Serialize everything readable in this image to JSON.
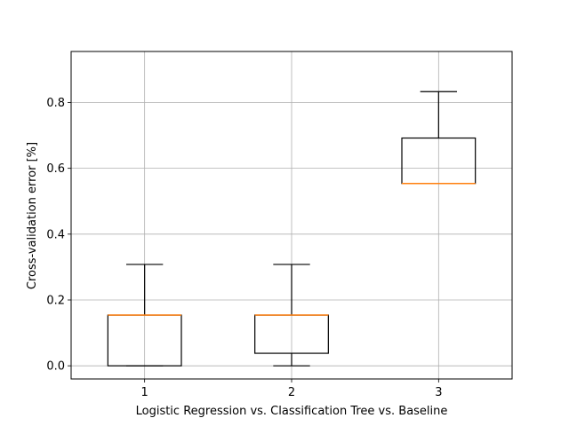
{
  "chart_data": {
    "type": "box",
    "categories": [
      "1",
      "2",
      "3"
    ],
    "xlabel": "Logistic Regression   vs.   Classification Tree    vs. Baseline",
    "ylabel": "Cross-validation error [%]",
    "ylim": [
      -0.04,
      0.955
    ],
    "yticks": [
      "0.0",
      "0.2",
      "0.4",
      "0.6",
      "0.8"
    ],
    "grid": true,
    "boxes": [
      {
        "whisker_low": 0.0,
        "q1": 0.0,
        "median": 0.154,
        "q3": 0.154,
        "whisker_high": 0.308
      },
      {
        "whisker_low": 0.0,
        "q1": 0.038,
        "median": 0.154,
        "q3": 0.154,
        "whisker_high": 0.308
      },
      {
        "whisker_low": 0.554,
        "q1": 0.554,
        "median": 0.554,
        "q3": 0.692,
        "whisker_high": 0.833
      }
    ],
    "colors": {
      "box": "#000000",
      "median": "#ff7f0e",
      "grid": "#b0b0b0"
    }
  }
}
